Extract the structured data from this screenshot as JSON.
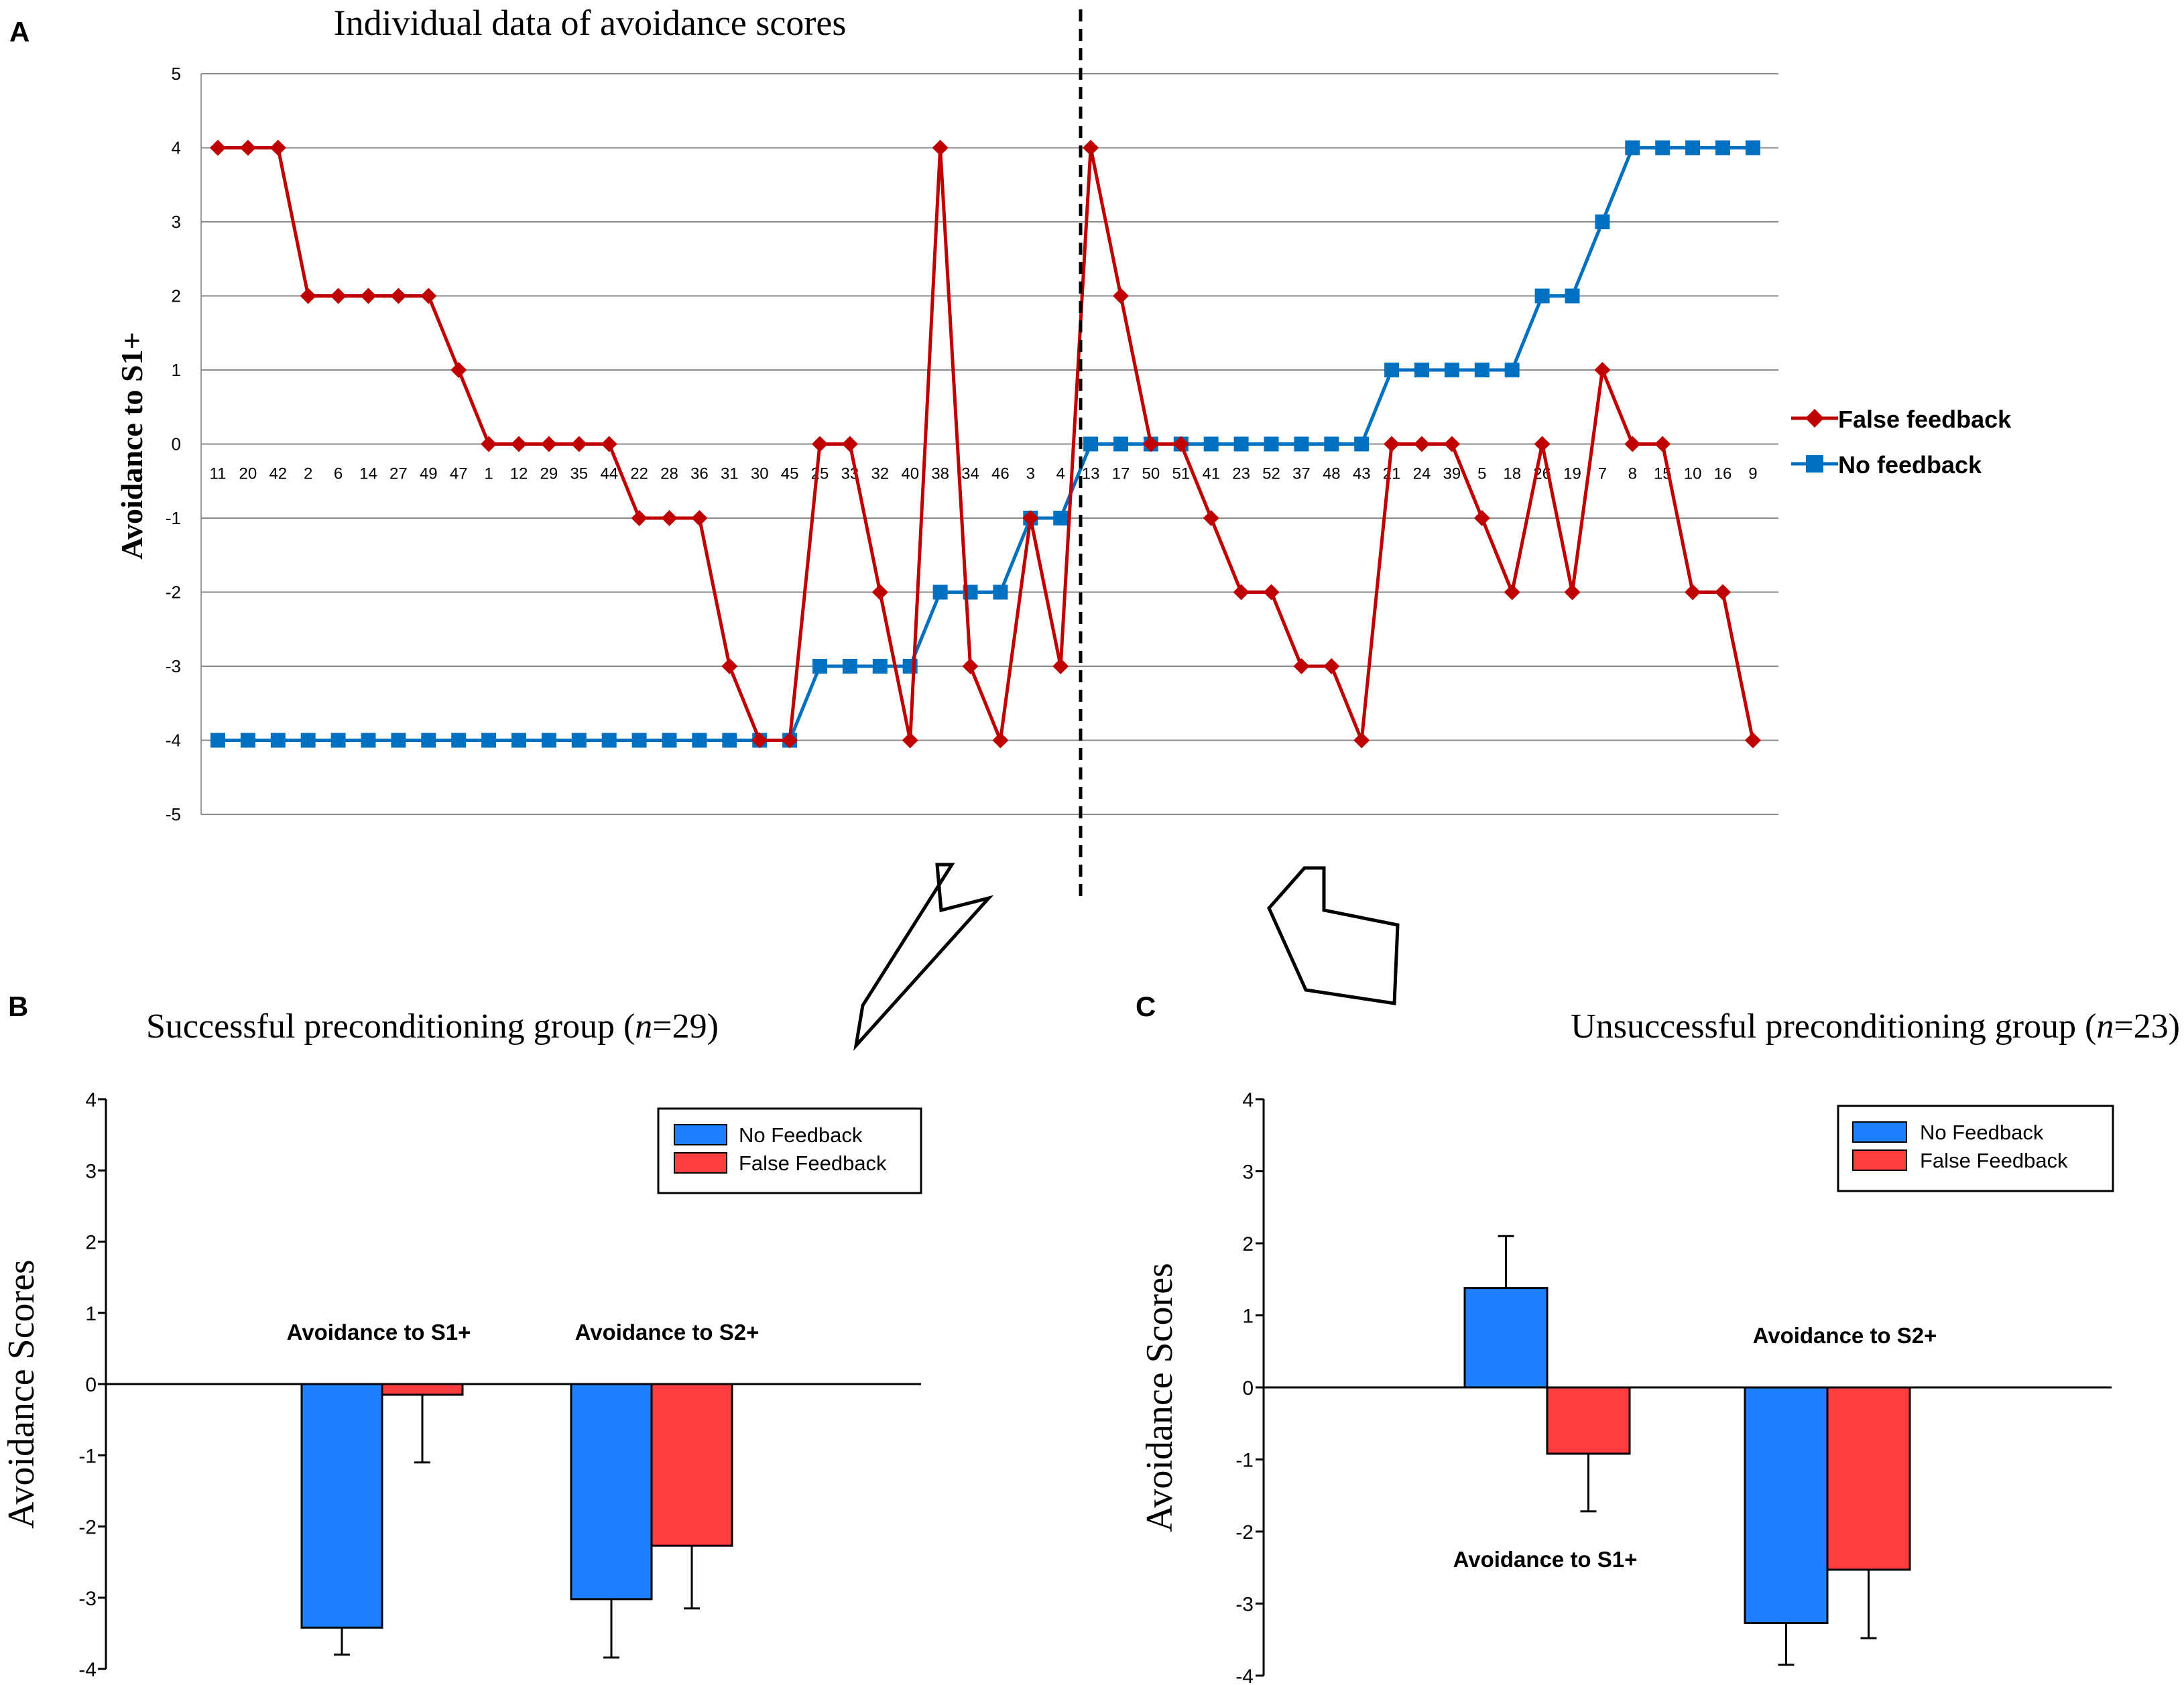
{
  "panel_a": {
    "letter": "A",
    "chart_data": {
      "type": "line",
      "title": "Individual data of avoidance scores",
      "ylabel": "Avoidance to S1+",
      "xlabel": "",
      "ylim": [
        -5,
        5
      ],
      "yticks": [
        "5",
        "4",
        "3",
        "2",
        "1",
        "0",
        "-1",
        "-2",
        "-3",
        "-4",
        "-5"
      ],
      "categories": [
        "11",
        "20",
        "42",
        "2",
        "6",
        "14",
        "27",
        "49",
        "47",
        "1",
        "12",
        "29",
        "35",
        "44",
        "22",
        "28",
        "36",
        "31",
        "30",
        "45",
        "25",
        "33",
        "32",
        "40",
        "38",
        "34",
        "46",
        "3",
        "4",
        "13",
        "17",
        "50",
        "51",
        "41",
        "23",
        "52",
        "37",
        "48",
        "43",
        "21",
        "24",
        "39",
        "5",
        "18",
        "26",
        "19",
        "7",
        "8",
        "15",
        "10",
        "16",
        "9"
      ],
      "series": [
        {
          "name": "False feedback",
          "color": "#c00000",
          "marker": "diamond",
          "values": [
            4,
            4,
            4,
            2,
            2,
            2,
            2,
            2,
            1,
            0,
            0,
            0,
            0,
            0,
            -1,
            -1,
            -1,
            -3,
            -4,
            -4,
            0,
            0,
            -2,
            -4,
            4,
            -3,
            -4,
            -1,
            -3,
            4,
            2,
            0,
            0,
            -1,
            -2,
            -2,
            -3,
            -3,
            -4,
            0,
            0,
            0,
            -1,
            -2,
            0,
            -2,
            1,
            0,
            0,
            -2,
            -2,
            -4
          ]
        },
        {
          "name": "No feedback",
          "color": "#0070c0",
          "marker": "square",
          "values": [
            -4,
            -4,
            -4,
            -4,
            -4,
            -4,
            -4,
            -4,
            -4,
            -4,
            -4,
            -4,
            -4,
            -4,
            -4,
            -4,
            -4,
            -4,
            -4,
            -4,
            -3,
            -3,
            -3,
            -3,
            -2,
            -2,
            -2,
            -1,
            -1,
            0,
            0,
            0,
            0,
            0,
            0,
            0,
            0,
            0,
            0,
            1,
            1,
            1,
            1,
            1,
            2,
            2,
            3,
            4,
            4,
            4,
            4,
            4
          ]
        }
      ],
      "legend": "right"
    }
  },
  "panel_b": {
    "letter": "B",
    "title_prefix": "Successful preconditioning group (",
    "title_n": "n",
    "title_suffix": "=29)",
    "chart_data": {
      "type": "bar",
      "ylabel": "Avoidance Scores",
      "ylim": [
        -4,
        4
      ],
      "yticks": [
        "4",
        "3",
        "2",
        "1",
        "0",
        "-1",
        "-2",
        "-3",
        "-4"
      ],
      "categories": [
        "Avoidance to S1+",
        "Avoidance to S2+"
      ],
      "series": [
        {
          "name": "No Feedback",
          "color": "#1e7fff",
          "values": [
            -3.42,
            -3.02
          ],
          "errors": [
            0.38,
            0.82
          ]
        },
        {
          "name": "False Feedback",
          "color": "#ff3f3f",
          "values": [
            -0.15,
            -2.27
          ],
          "errors": [
            0.95,
            0.88
          ]
        }
      ],
      "legend": "top-right"
    }
  },
  "panel_c": {
    "letter": "C",
    "title_prefix": "Unsuccessful preconditioning group (",
    "title_n": "n",
    "title_suffix": "=23)",
    "chart_data": {
      "type": "bar",
      "ylabel": "Avoidance Scores",
      "ylim": [
        -4,
        4
      ],
      "yticks": [
        "4",
        "3",
        "2",
        "1",
        "0",
        "-1",
        "-2",
        "-3",
        "-4"
      ],
      "categories": [
        "Avoidance to S1+",
        "Avoidance to S2+"
      ],
      "series": [
        {
          "name": "No Feedback",
          "color": "#1e7fff",
          "values": [
            1.38,
            -3.27
          ],
          "errors": [
            0.72,
            0.58
          ]
        },
        {
          "name": "False Feedback",
          "color": "#ff3f3f",
          "values": [
            -0.92,
            -2.53
          ],
          "errors": [
            0.8,
            0.95
          ]
        }
      ],
      "legend": "top-right"
    }
  }
}
